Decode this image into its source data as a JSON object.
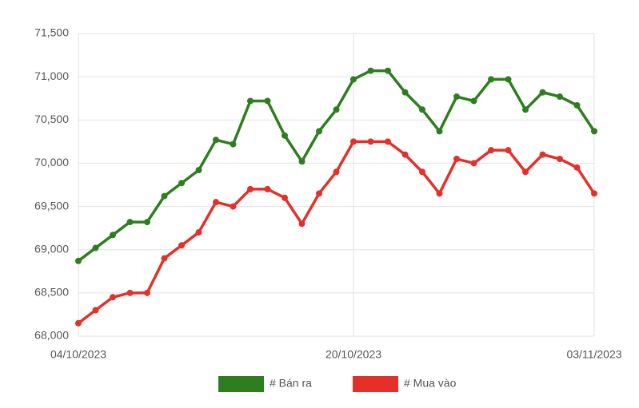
{
  "chart_data": {
    "type": "line",
    "categories": [
      "04/10/2023",
      null,
      null,
      null,
      null,
      null,
      null,
      null,
      null,
      null,
      null,
      null,
      null,
      null,
      null,
      null,
      "20/10/2023",
      null,
      null,
      null,
      null,
      null,
      null,
      null,
      null,
      null,
      null,
      null,
      null,
      null,
      "03/11/2023"
    ],
    "series": [
      {
        "name": "# Bán ra",
        "color": "#2e7d1f",
        "values": [
          68870,
          69020,
          69170,
          69320,
          69320,
          69620,
          69770,
          69920,
          70270,
          70220,
          70720,
          70720,
          70320,
          70020,
          70370,
          70620,
          70970,
          71070,
          71070,
          70820,
          70620,
          70370,
          70770,
          70720,
          70970,
          70970,
          70620,
          70820,
          70770,
          70670,
          70370
        ]
      },
      {
        "name": "# Mua vào",
        "color": "#e5302a",
        "values": [
          68150,
          68300,
          68450,
          68500,
          68500,
          68900,
          69050,
          69200,
          69550,
          69500,
          69700,
          69700,
          69600,
          69300,
          69650,
          69900,
          70250,
          70250,
          70250,
          70100,
          69900,
          69650,
          70050,
          70000,
          70150,
          70150,
          69900,
          70100,
          70050,
          69950,
          69650
        ]
      }
    ],
    "ylim": [
      68000,
      71500
    ],
    "yticks": [
      {
        "value": 68000,
        "label": "68,000"
      },
      {
        "value": 68500,
        "label": "68,500"
      },
      {
        "value": 69000,
        "label": "69,000"
      },
      {
        "value": 69500,
        "label": "69,500"
      },
      {
        "value": 70000,
        "label": "70,000"
      },
      {
        "value": 70500,
        "label": "70,500"
      },
      {
        "value": 71000,
        "label": "71,000"
      },
      {
        "value": 71500,
        "label": "71,500"
      }
    ],
    "grid": true,
    "legend": "bottom"
  }
}
